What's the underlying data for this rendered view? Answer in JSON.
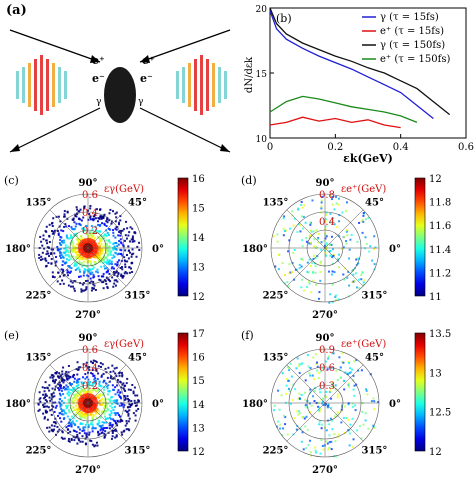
{
  "panels": {
    "a": {
      "label": "(a)",
      "particles": {
        "positron_left": "e⁺",
        "positron_right": "e⁺",
        "electron_left": "e⁻",
        "electron_right": "e⁻",
        "gamma_left": "γ",
        "gamma_right": "γ"
      }
    },
    "b": {
      "label": "(b)"
    },
    "c": {
      "label": "(c)",
      "quantity": "εγ(GeV)",
      "radii": [
        "0.2",
        "0.4",
        "0.6"
      ],
      "colorbar": [
        "16",
        "15",
        "14",
        "13",
        "12"
      ]
    },
    "d": {
      "label": "(d)",
      "quantity": "εe⁺(GeV)",
      "radii": [
        "0.4",
        "0.8"
      ],
      "colorbar": [
        "12",
        "11.8",
        "11.6",
        "11.4",
        "11.2",
        "11"
      ]
    },
    "e": {
      "label": "(e)",
      "quantity": "εγ(GeV)",
      "radii": [
        "0.2",
        "0.4",
        "0.6"
      ],
      "colorbar": [
        "17",
        "16",
        "15",
        "14",
        "13",
        "12"
      ]
    },
    "f": {
      "label": "(f)",
      "quantity": "εe⁺(GeV)",
      "radii": [
        "0.3",
        "0.6",
        "0.9"
      ],
      "colorbar": [
        "13.5",
        "13",
        "12.5",
        "12"
      ]
    },
    "angles": [
      "0°",
      "45°",
      "90°",
      "135°",
      "180°",
      "225°",
      "270°",
      "315°"
    ]
  },
  "chart_data": {
    "type": "line",
    "xlabel": "εk(GeV)",
    "ylabel": "dN/dεk",
    "xlim": [
      0,
      0.6
    ],
    "ylim": [
      10000000000.0,
      1e+20
    ],
    "xticks": [
      "0",
      "0.2",
      "0.4",
      "0.6"
    ],
    "yticks": [
      "10",
      "15",
      "20"
    ],
    "yscale": "log",
    "legend_position": "top-right",
    "series": [
      {
        "name": "γ (τ = 15fs)",
        "color": "#1f1fd6",
        "x": [
          0.0,
          0.02,
          0.05,
          0.1,
          0.15,
          0.2,
          0.25,
          0.3,
          0.35,
          0.4,
          0.45,
          0.5
        ],
        "y": [
          19.8,
          18.4,
          17.6,
          16.9,
          16.3,
          15.8,
          15.3,
          14.7,
          14.1,
          13.5,
          12.5,
          11.5
        ]
      },
      {
        "name": "e⁺ (τ = 15fs)",
        "color": "#e01010",
        "x": [
          0.0,
          0.05,
          0.1,
          0.15,
          0.2,
          0.25,
          0.3,
          0.35,
          0.4
        ],
        "y": [
          11.0,
          11.2,
          11.6,
          11.3,
          11.5,
          11.2,
          11.4,
          11.0,
          10.8
        ]
      },
      {
        "name": "γ (τ = 150fs)",
        "color": "#111111",
        "x": [
          0.0,
          0.02,
          0.05,
          0.1,
          0.15,
          0.2,
          0.25,
          0.3,
          0.35,
          0.4,
          0.45,
          0.5,
          0.55
        ],
        "y": [
          20.0,
          18.8,
          18.0,
          17.3,
          16.8,
          16.3,
          15.9,
          15.4,
          15.0,
          14.4,
          13.8,
          12.8,
          11.8
        ]
      },
      {
        "name": "e⁺ (τ = 150fs)",
        "color": "#1a8a1a",
        "x": [
          0.0,
          0.05,
          0.1,
          0.15,
          0.2,
          0.25,
          0.3,
          0.35,
          0.4,
          0.45
        ],
        "y": [
          12.0,
          12.8,
          13.2,
          13.0,
          12.7,
          12.4,
          12.2,
          12.0,
          11.7,
          11.2
        ]
      }
    ]
  }
}
